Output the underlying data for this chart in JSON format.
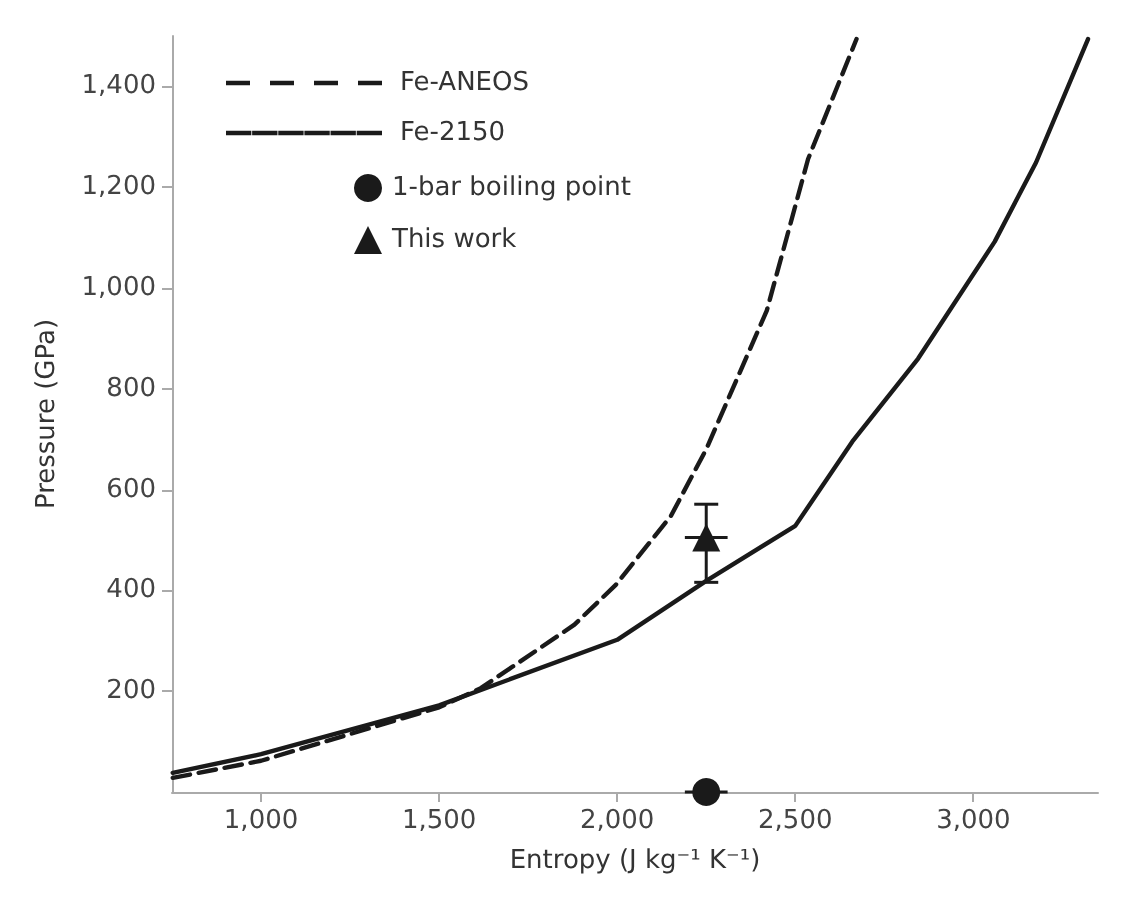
{
  "chart_data": {
    "type": "line",
    "xlabel": "Entropy (J kg⁻¹ K⁻¹)",
    "ylabel": "Pressure (GPa)",
    "xlim": [
      750,
      3350
    ],
    "ylim": [
      0,
      1500
    ],
    "xticks": [
      {
        "value": 1000,
        "label": "1,000"
      },
      {
        "value": 1500,
        "label": "1,500"
      },
      {
        "value": 2000,
        "label": "2,000"
      },
      {
        "value": 2500,
        "label": "2,500"
      },
      {
        "value": 3000,
        "label": "3,000"
      }
    ],
    "yticks": [
      200,
      400,
      600,
      800,
      {
        "value": 1000,
        "label": "1,000"
      },
      {
        "value": 1200,
        "label": "1,200"
      },
      {
        "value": 1400,
        "label": "1,400"
      }
    ],
    "grid": false,
    "legend": "top left",
    "series": [
      {
        "name": "Fe-ANEOS",
        "line_style": "dashed",
        "marker": "none",
        "color": "#1a1a1a",
        "x": [
          752,
          1000,
          1500,
          1617,
          1880,
          1996,
          2151,
          2250,
          2420,
          2536,
          2672
        ],
        "values": [
          28,
          62,
          168,
          206,
          332,
          411,
          548,
          680,
          955,
          1256,
          1494
        ]
      },
      {
        "name": "Fe-2150",
        "line_style": "solid",
        "marker": "none",
        "color": "#1a1a1a",
        "x": [
          752,
          1000,
          1500,
          2000,
          2250,
          2500,
          2660,
          2845,
          3060,
          3176,
          3322
        ],
        "values": [
          38,
          75,
          172,
          302,
          419,
          528,
          695,
          860,
          1092,
          1249,
          1494
        ]
      },
      {
        "name": "1-bar boiling point",
        "type": "scatter",
        "marker": "circle",
        "color": "#1a1a1a",
        "x": [
          2250
        ],
        "values": [
          0
        ],
        "xerrors": [
          60
        ]
      },
      {
        "name": "This work",
        "type": "scatter",
        "marker": "triangle",
        "color": "#1a1a1a",
        "x": [
          2250
        ],
        "values": [
          505
        ],
        "errors": [
          [
            416,
            571
          ]
        ],
        "xerrors": [
          60
        ]
      }
    ]
  }
}
